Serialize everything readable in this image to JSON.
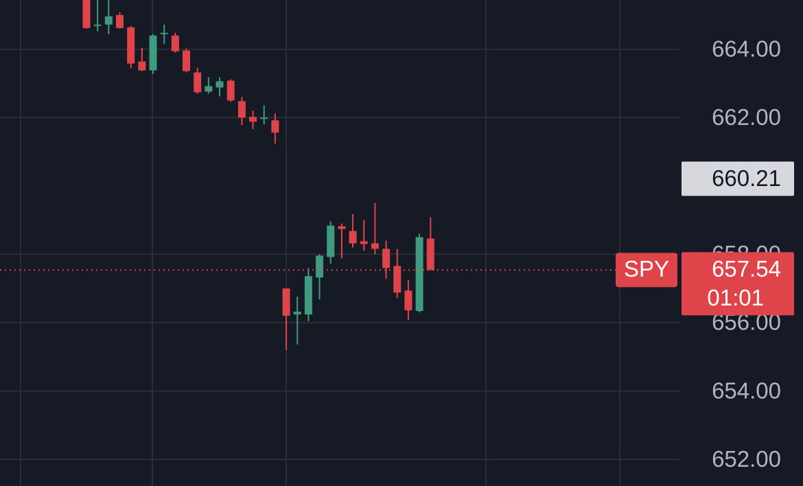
{
  "chart_data": {
    "type": "candlestick",
    "series": [
      {
        "name": "SPY",
        "open": [
          665.6,
          664.68,
          664.72,
          665.0,
          664.64,
          663.64,
          663.38,
          664.44,
          664.4,
          663.96,
          663.32,
          662.76,
          662.88,
          663.08,
          662.48,
          662.02,
          661.96,
          661.92,
          657.0,
          656.24,
          656.24,
          657.32,
          657.92,
          658.82,
          658.68,
          658.38,
          658.32,
          658.16,
          657.66,
          656.94,
          656.34,
          658.46
        ],
        "high": [
          665.7,
          665.5,
          665.5,
          665.08,
          664.68,
          664.04,
          664.44,
          664.72,
          664.48,
          664.02,
          663.46,
          663.18,
          663.18,
          663.12,
          662.6,
          662.2,
          662.36,
          662.12,
          657.0,
          656.76,
          657.6,
          658.0,
          658.96,
          658.9,
          659.18,
          659.0,
          659.5,
          658.4,
          658.16,
          657.24,
          658.6,
          659.08
        ],
        "low": [
          664.6,
          664.52,
          664.44,
          664.6,
          663.44,
          663.36,
          663.28,
          664.16,
          663.9,
          663.32,
          662.7,
          662.7,
          662.62,
          662.46,
          661.78,
          661.66,
          661.8,
          661.24,
          655.2,
          655.36,
          656.04,
          656.68,
          657.72,
          657.88,
          658.2,
          658.1,
          658.0,
          657.28,
          656.72,
          656.08,
          656.3,
          657.54
        ],
        "close": [
          664.62,
          664.72,
          664.96,
          664.62,
          663.58,
          663.38,
          664.4,
          664.48,
          663.94,
          663.36,
          662.74,
          662.92,
          663.06,
          662.5,
          662.0,
          661.88,
          662.0,
          661.56,
          656.2,
          656.32,
          657.36,
          657.96,
          658.84,
          658.74,
          658.32,
          658.3,
          658.16,
          657.6,
          656.88,
          656.36,
          658.5,
          657.54
        ]
      }
    ],
    "up_color": "#3f9a7e",
    "down_color": "#e0444b",
    "ylim": [
      651.22,
      665.44
    ],
    "yticks": [
      {
        "value": 652,
        "label": "652.00"
      },
      {
        "value": 654,
        "label": "654.00"
      },
      {
        "value": 656,
        "label": "656.00"
      },
      {
        "value": 658,
        "label": "658.00"
      },
      {
        "value": 662,
        "label": "662.00"
      },
      {
        "value": 664,
        "label": "664.00"
      }
    ],
    "grid": true,
    "crosshair_price": 660.21,
    "last_price": 657.54,
    "countdown": "01:01"
  }
}
